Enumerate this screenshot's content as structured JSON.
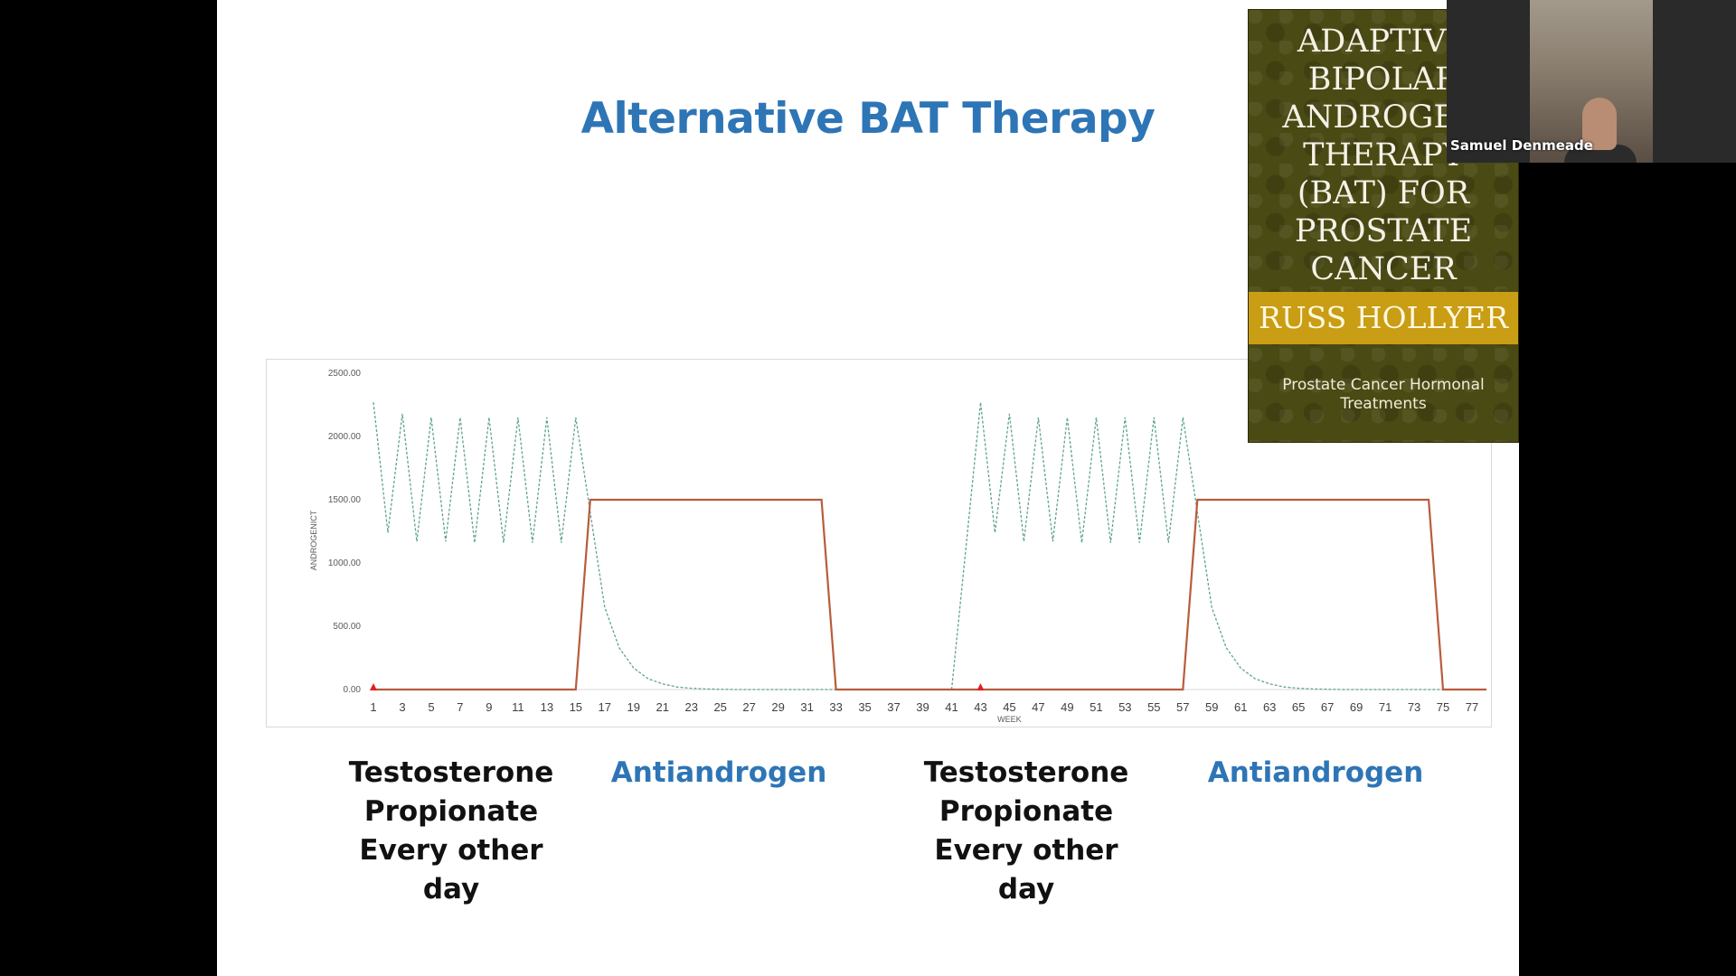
{
  "slide": {
    "title": "Alternative BAT Therapy",
    "captions": [
      {
        "text": "Testosterone\nPropionate\nEvery other day",
        "color": "black"
      },
      {
        "text": "Antiandrogen",
        "color": "blue"
      },
      {
        "text": "Testosterone\nPropionate\nEvery other day",
        "color": "black"
      },
      {
        "text": "Antiandrogen",
        "color": "blue"
      }
    ]
  },
  "book": {
    "title": "ADAPTIVE\nBIPOLAR\nANDROGEN\nTHERAPY\n(BAT) FOR\nPROSTATE\nCANCER",
    "author": "RUSS HOLLYER",
    "subtitle": "Prostate Cancer Hormonal\nTreatments",
    "colors": {
      "cover": "#4a4a14",
      "band": "#c99d14"
    }
  },
  "video": {
    "participant_name": "Samuel Denmeade"
  },
  "chart_data": {
    "type": "line",
    "xlabel": "WEEK",
    "ylabel": "ANDROGENICT",
    "ylim": [
      0,
      2500
    ],
    "y_ticks": [
      "0.00",
      "500.00",
      "1000.00",
      "1500.00",
      "2000.00",
      "2500.00"
    ],
    "x_ticks": [
      1,
      3,
      5,
      7,
      9,
      11,
      13,
      15,
      17,
      19,
      21,
      23,
      25,
      27,
      29,
      31,
      33,
      35,
      37,
      39,
      41,
      43,
      45,
      47,
      49,
      51,
      53,
      55,
      57,
      59,
      61,
      63,
      65,
      67,
      69,
      71,
      73,
      75,
      77
    ],
    "xlim": [
      1,
      78
    ],
    "markers": [
      {
        "x": 1,
        "y": 0
      },
      {
        "x": 43,
        "y": 0
      }
    ],
    "series": [
      {
        "color": "#5fa391",
        "dash": true,
        "points": [
          [
            1,
            2270
          ],
          [
            2,
            1240
          ],
          [
            3,
            2180
          ],
          [
            4,
            1170
          ],
          [
            5,
            2150
          ],
          [
            6,
            1170
          ],
          [
            7,
            2150
          ],
          [
            8,
            1160
          ],
          [
            9,
            2150
          ],
          [
            10,
            1160
          ],
          [
            11,
            2150
          ],
          [
            12,
            1160
          ],
          [
            13,
            2150
          ],
          [
            14,
            1160
          ],
          [
            15,
            2150
          ],
          [
            16,
            1400
          ],
          [
            17,
            650
          ],
          [
            18,
            330
          ],
          [
            19,
            170
          ],
          [
            20,
            85
          ],
          [
            21,
            45
          ],
          [
            22,
            20
          ],
          [
            23,
            10
          ],
          [
            24,
            4
          ],
          [
            25,
            2
          ],
          [
            26,
            0
          ],
          [
            32,
            0
          ],
          [
            41,
            0
          ],
          [
            43,
            2270
          ],
          [
            44,
            1240
          ],
          [
            45,
            2180
          ],
          [
            46,
            1170
          ],
          [
            47,
            2150
          ],
          [
            48,
            1170
          ],
          [
            49,
            2150
          ],
          [
            50,
            1160
          ],
          [
            51,
            2150
          ],
          [
            52,
            1160
          ],
          [
            53,
            2150
          ],
          [
            54,
            1160
          ],
          [
            55,
            2150
          ],
          [
            56,
            1160
          ],
          [
            57,
            2150
          ],
          [
            58,
            1400
          ],
          [
            59,
            650
          ],
          [
            60,
            330
          ],
          [
            61,
            170
          ],
          [
            62,
            85
          ],
          [
            63,
            45
          ],
          [
            64,
            20
          ],
          [
            65,
            10
          ],
          [
            66,
            4
          ],
          [
            67,
            2
          ],
          [
            68,
            0
          ],
          [
            78,
            0
          ]
        ]
      },
      {
        "color": "#b85c3c",
        "dash": false,
        "points": [
          [
            1,
            0
          ],
          [
            15,
            0
          ],
          [
            16,
            1500
          ],
          [
            32,
            1500
          ],
          [
            33,
            0
          ],
          [
            43,
            0
          ],
          [
            57,
            0
          ],
          [
            58,
            1500
          ],
          [
            74,
            1500
          ],
          [
            75,
            0
          ],
          [
            78,
            0
          ]
        ]
      }
    ]
  }
}
